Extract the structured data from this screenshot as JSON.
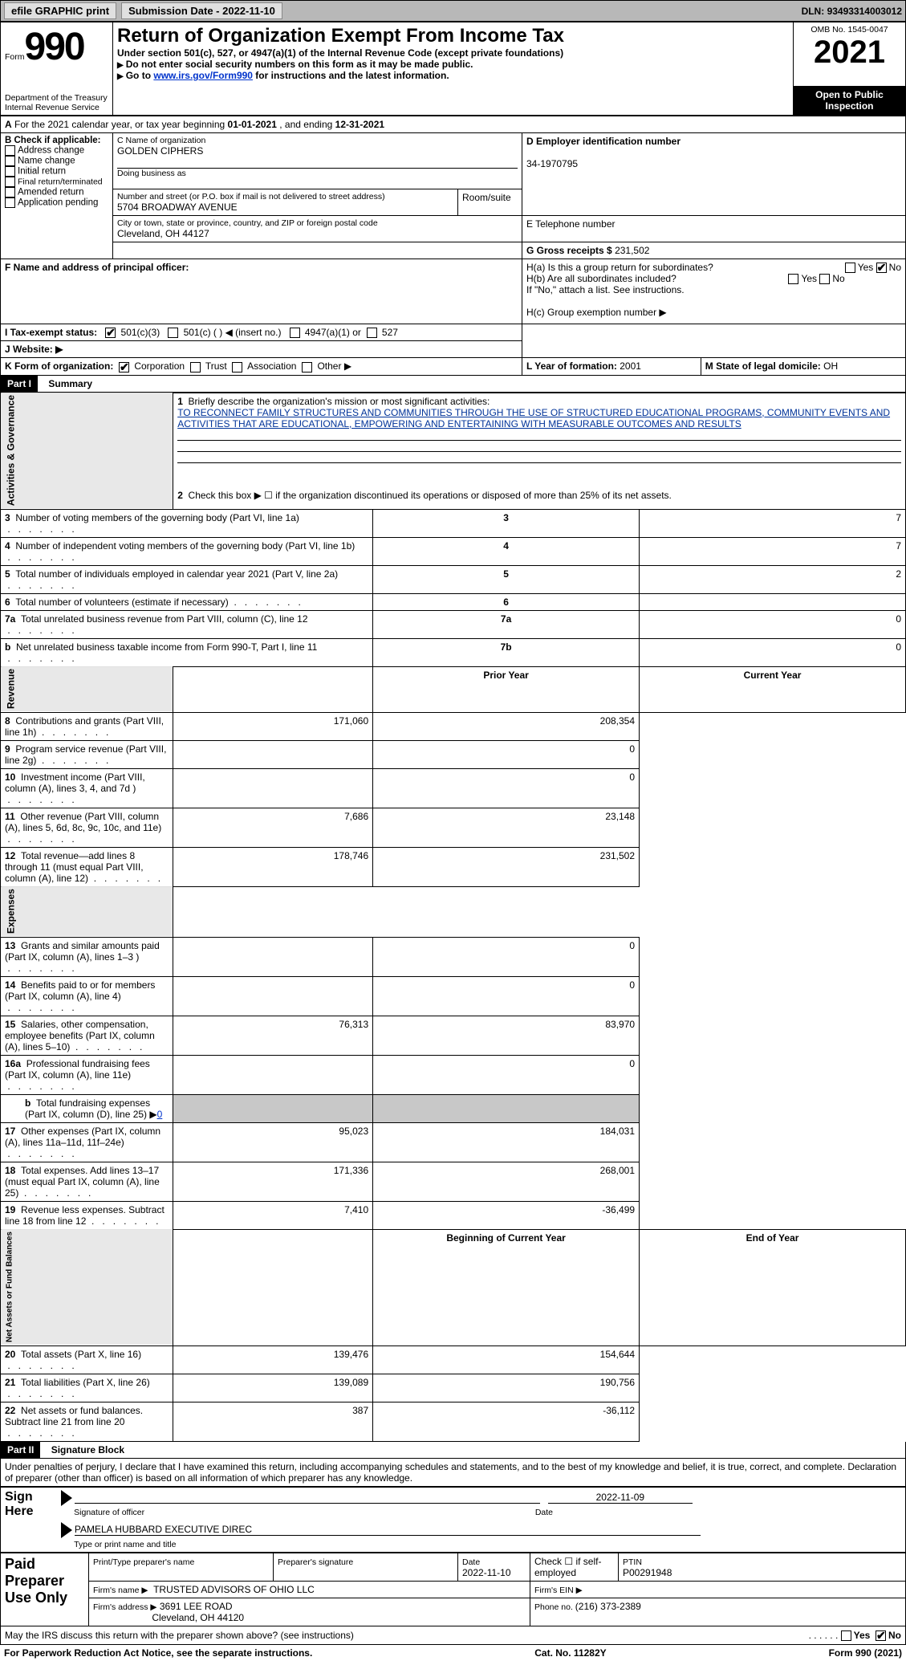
{
  "topbar": {
    "efile": "efile GRAPHIC print",
    "subdate_label": "Submission Date - ",
    "subdate": "2022-11-10",
    "dln_label": "DLN: ",
    "dln": "93493314003012"
  },
  "header": {
    "form_label": "Form",
    "form_no": "990",
    "title": "Return of Organization Exempt From Income Tax",
    "subtitle": "Under section 501(c), 527, or 4947(a)(1) of the Internal Revenue Code (except private foundations)",
    "note1": "Do not enter social security numbers on this form as it may be made public.",
    "note2_pre": "Go to ",
    "note2_link": "www.irs.gov/Form990",
    "note2_post": " for instructions and the latest information.",
    "dept": "Department of the Treasury",
    "irs": "Internal Revenue Service",
    "omb_label": "OMB No. ",
    "omb": "1545-0047",
    "year": "2021",
    "open": "Open to Public Inspection"
  },
  "section_a": {
    "a_text": "For the 2021 calendar year, or tax year beginning ",
    "begin": "01-01-2021",
    "mid": " , and ending ",
    "end": "12-31-2021",
    "b_label": "B Check if applicable:",
    "addr_change": "Address change",
    "name_change": "Name change",
    "initial": "Initial return",
    "final": "Final return/terminated",
    "amended": "Amended return",
    "app_pending": "Application pending",
    "c_label": "C Name of organization",
    "org_name": "GOLDEN CIPHERS",
    "dba_label": "Doing business as",
    "addr_label": "Number and street (or P.O. box if mail is not delivered to street address)",
    "room_label": "Room/suite",
    "addr": "5704 BROADWAY AVENUE",
    "city_label": "City or town, state or province, country, and ZIP or foreign postal code",
    "city": "Cleveland, OH  44127",
    "d_label": "D Employer identification number",
    "ein": "34-1970795",
    "e_label": "E Telephone number",
    "g_label": "G Gross receipts $ ",
    "gross": "231,502",
    "f_label": "F Name and address of principal officer:",
    "ha_label": "H(a)  Is this a group return for subordinates?",
    "hb_label": "H(b)  Are all subordinates included?",
    "hb_note": "If \"No,\" attach a list. See instructions.",
    "hc_label": "H(c)  Group exemption number ▶",
    "yes": "Yes",
    "no": "No",
    "i_label": "I  Tax-exempt status:",
    "i_501c3": "501(c)(3)",
    "i_501c": "501(c) (   ) ◀ (insert no.)",
    "i_4947": "4947(a)(1) or",
    "i_527": "527",
    "j_label": "J  Website: ▶",
    "k_label": "K Form of organization:",
    "k_corp": "Corporation",
    "k_trust": "Trust",
    "k_assoc": "Association",
    "k_other": "Other ▶",
    "l_label": "L Year of formation: ",
    "l_val": "2001",
    "m_label": "M State of legal domicile: ",
    "m_val": "OH"
  },
  "part1": {
    "header": "Part I",
    "title": "Summary",
    "briefly": "Briefly describe the organization's mission or most significant activities:",
    "mission": "TO RECONNECT FAMILY STRUCTURES AND COMMUNITIES THROUGH THE USE OF STRUCTURED EDUCATIONAL PROGRAMS, COMMUNITY EVENTS AND ACTIVITIES THAT ARE EDUCATIONAL, EMPOWERING AND ENTERTAINING WITH MEASURABLE OUTCOMES AND RESULTS",
    "line2": "Check this box ▶ ☐ if the organization discontinued its operations or disposed of more than 25% of its net assets.",
    "vert_activities": "Activities & Governance",
    "vert_revenue": "Revenue",
    "vert_expenses": "Expenses",
    "vert_netassets": "Net Assets or Fund Balances",
    "rows_top": [
      {
        "n": "3",
        "label": "Number of voting members of the governing body (Part VI, line 1a)",
        "box": "3",
        "val": "7"
      },
      {
        "n": "4",
        "label": "Number of independent voting members of the governing body (Part VI, line 1b)",
        "box": "4",
        "val": "7"
      },
      {
        "n": "5",
        "label": "Total number of individuals employed in calendar year 2021 (Part V, line 2a)",
        "box": "5",
        "val": "2"
      },
      {
        "n": "6",
        "label": "Total number of volunteers (estimate if necessary)",
        "box": "6",
        "val": ""
      },
      {
        "n": "7a",
        "label": "Total unrelated business revenue from Part VIII, column (C), line 12",
        "box": "7a",
        "val": "0"
      },
      {
        "n": "b",
        "label": "Net unrelated business taxable income from Form 990-T, Part I, line 11",
        "box": "7b",
        "val": "0"
      }
    ],
    "col_prior": "Prior Year",
    "col_current": "Current Year",
    "rows_rev": [
      {
        "n": "8",
        "label": "Contributions and grants (Part VIII, line 1h)",
        "prior": "171,060",
        "curr": "208,354"
      },
      {
        "n": "9",
        "label": "Program service revenue (Part VIII, line 2g)",
        "prior": "",
        "curr": "0"
      },
      {
        "n": "10",
        "label": "Investment income (Part VIII, column (A), lines 3, 4, and 7d )",
        "prior": "",
        "curr": "0"
      },
      {
        "n": "11",
        "label": "Other revenue (Part VIII, column (A), lines 5, 6d, 8c, 9c, 10c, and 11e)",
        "prior": "7,686",
        "curr": "23,148"
      },
      {
        "n": "12",
        "label": "Total revenue—add lines 8 through 11 (must equal Part VIII, column (A), line 12)",
        "prior": "178,746",
        "curr": "231,502"
      }
    ],
    "rows_exp": [
      {
        "n": "13",
        "label": "Grants and similar amounts paid (Part IX, column (A), lines 1–3 )",
        "prior": "",
        "curr": "0"
      },
      {
        "n": "14",
        "label": "Benefits paid to or for members (Part IX, column (A), line 4)",
        "prior": "",
        "curr": "0"
      },
      {
        "n": "15",
        "label": "Salaries, other compensation, employee benefits (Part IX, column (A), lines 5–10)",
        "prior": "76,313",
        "curr": "83,970"
      },
      {
        "n": "16a",
        "label": "Professional fundraising fees (Part IX, column (A), line 11e)",
        "prior": "",
        "curr": "0"
      }
    ],
    "line_b_pre": "Total fundraising expenses (Part IX, column (D), line 25) ▶",
    "line_b_val": "0",
    "rows_exp2": [
      {
        "n": "17",
        "label": "Other expenses (Part IX, column (A), lines 11a–11d, 11f–24e)",
        "prior": "95,023",
        "curr": "184,031"
      },
      {
        "n": "18",
        "label": "Total expenses. Add lines 13–17 (must equal Part IX, column (A), line 25)",
        "prior": "171,336",
        "curr": "268,001"
      },
      {
        "n": "19",
        "label": "Revenue less expenses. Subtract line 18 from line 12",
        "prior": "7,410",
        "curr": "-36,499"
      }
    ],
    "col_begin": "Beginning of Current Year",
    "col_end": "End of Year",
    "rows_net": [
      {
        "n": "20",
        "label": "Total assets (Part X, line 16)",
        "prior": "139,476",
        "curr": "154,644"
      },
      {
        "n": "21",
        "label": "Total liabilities (Part X, line 26)",
        "prior": "139,089",
        "curr": "190,756"
      },
      {
        "n": "22",
        "label": "Net assets or fund balances. Subtract line 21 from line 20",
        "prior": "387",
        "curr": "-36,112"
      }
    ]
  },
  "part2": {
    "header": "Part II",
    "title": "Signature Block",
    "declaration": "Under penalties of perjury, I declare that I have examined this return, including accompanying schedules and statements, and to the best of my knowledge and belief, it is true, correct, and complete. Declaration of preparer (other than officer) is based on all information of which preparer has any knowledge.",
    "sign_here": "Sign Here",
    "sig_officer": "Signature of officer",
    "sig_date": "2022-11-09",
    "date_label": "Date",
    "officer_name": "PAMELA HUBBARD  EXECUTIVE DIREC",
    "type_name": "Type or print name and title",
    "paid": "Paid Preparer Use Only",
    "print_name_label": "Print/Type preparer's name",
    "prep_sig_label": "Preparer's signature",
    "prep_date_label": "Date",
    "prep_date": "2022-11-10",
    "check_if": "Check ☐ if self-employed",
    "ptin_label": "PTIN",
    "ptin": "P00291948",
    "firm_name_label": "Firm's name    ▶",
    "firm_name": "TRUSTED ADVISORS OF OHIO LLC",
    "firm_ein_label": "Firm's EIN ▶",
    "firm_addr_label": "Firm's address ▶",
    "firm_addr1": "3691 LEE ROAD",
    "firm_addr2": "Cleveland, OH  44120",
    "phone_label": "Phone no. ",
    "phone": "(216) 373-2389",
    "may_irs": "May the IRS discuss this return with the preparer shown above? (see instructions)"
  },
  "footer": {
    "paperwork": "For Paperwork Reduction Act Notice, see the separate instructions.",
    "cat": "Cat. No. 11282Y",
    "formref": "Form 990 (2021)"
  }
}
